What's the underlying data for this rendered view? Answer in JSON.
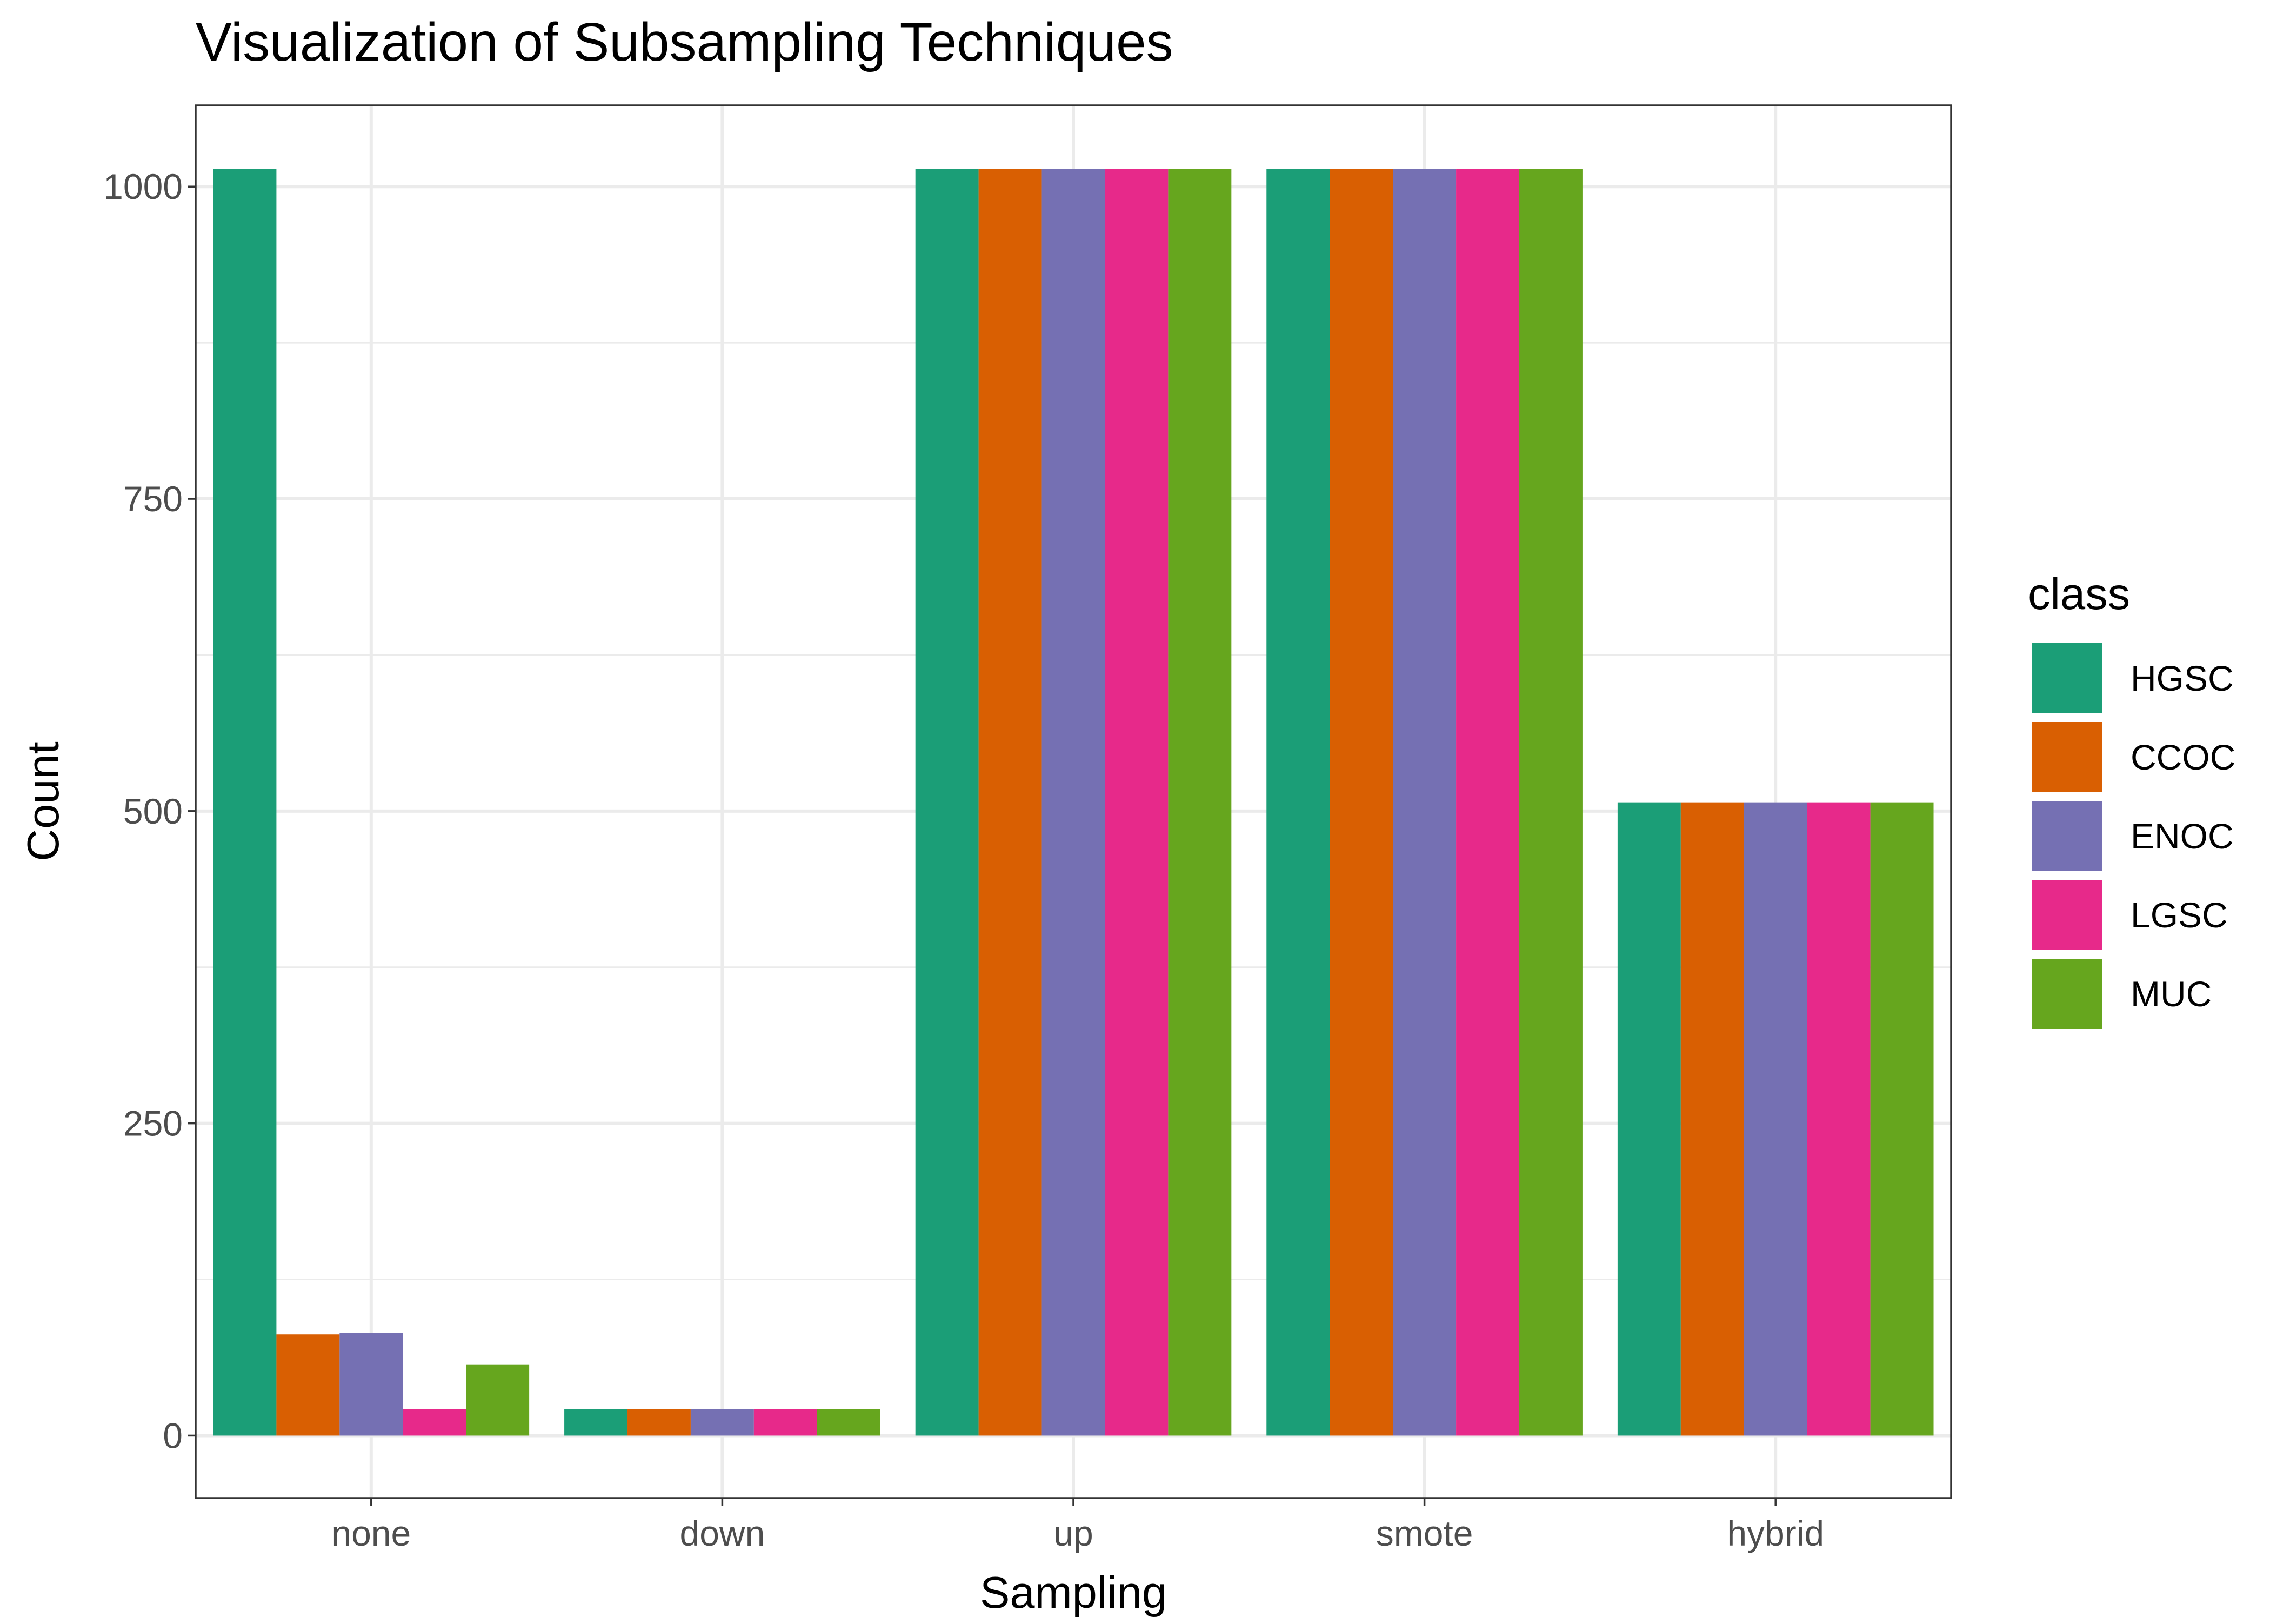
{
  "chart_data": {
    "type": "bar",
    "title": "Visualization of Subsampling Techniques",
    "xlabel": "Sampling",
    "ylabel": "Count",
    "categories": [
      "none",
      "down",
      "up",
      "smote",
      "hybrid"
    ],
    "ylim": [
      -50,
      1065
    ],
    "yticks": [
      0,
      250,
      500,
      750,
      1000
    ],
    "ytick_labels": [
      "0",
      "250",
      "500",
      "750",
      "1000"
    ],
    "grid": true,
    "legend": {
      "title": "class",
      "position": "right"
    },
    "series": [
      {
        "name": "HGSC",
        "color": "#1B9E77",
        "values": [
          1014,
          21,
          1014,
          1014,
          507
        ]
      },
      {
        "name": "CCOC",
        "color": "#D95F02",
        "values": [
          81,
          21,
          1014,
          1014,
          507
        ]
      },
      {
        "name": "ENOC",
        "color": "#7570B3",
        "values": [
          82,
          21,
          1014,
          1014,
          507
        ]
      },
      {
        "name": "LGSC",
        "color": "#E7298A",
        "values": [
          21,
          21,
          1014,
          1014,
          507
        ]
      },
      {
        "name": "MUC",
        "color": "#66A61E",
        "values": [
          57,
          21,
          1014,
          1014,
          507
        ]
      }
    ]
  }
}
